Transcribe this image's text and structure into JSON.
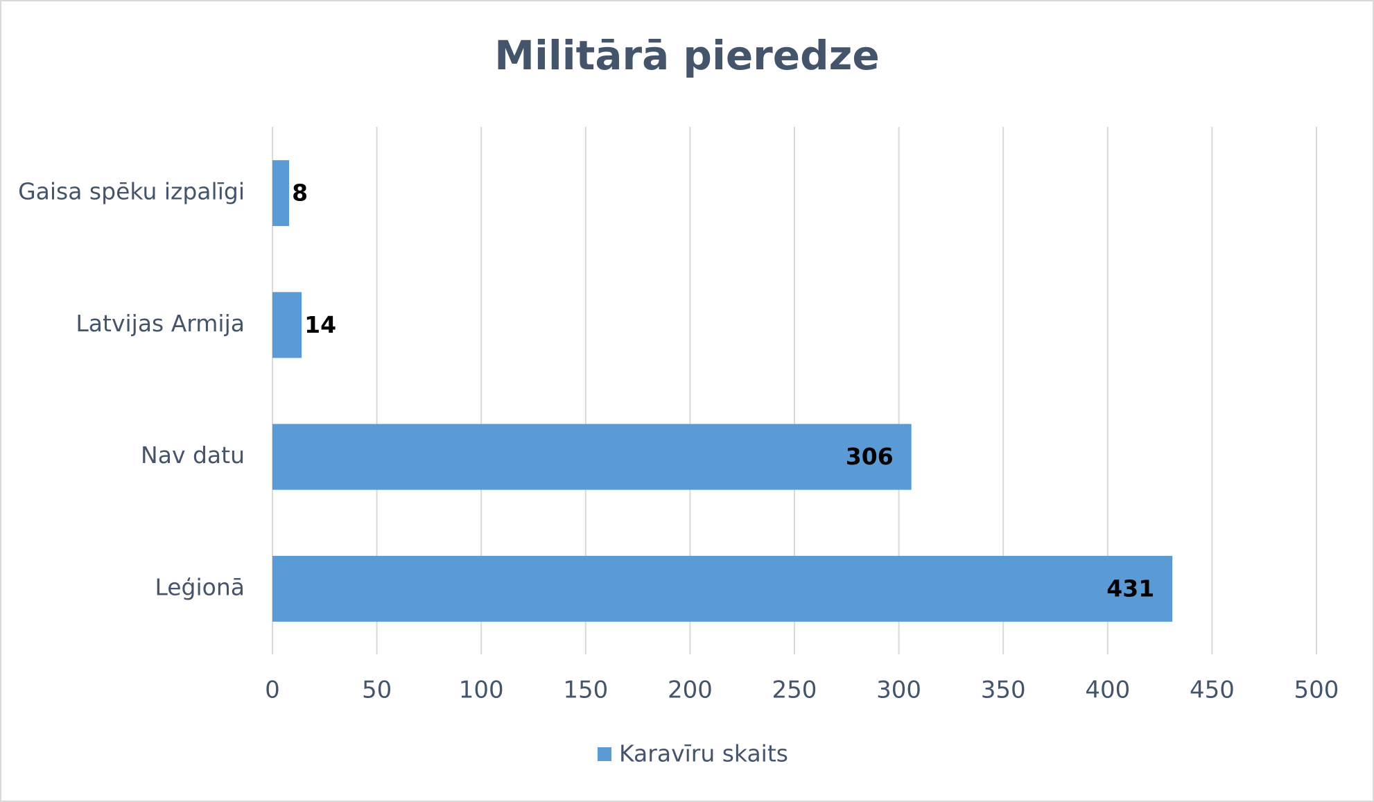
{
  "chart_data": {
    "type": "bar",
    "orientation": "horizontal",
    "title": "Militārā pieredze",
    "categories": [
      "Gaisa spēku izpalīgi",
      "Latvijas Armija",
      "Nav datu",
      "Leģionā"
    ],
    "series": [
      {
        "name": "Karavīru skaits",
        "color": "#5b9bd5",
        "values": [
          8,
          14,
          306,
          431
        ]
      }
    ],
    "xlim": [
      0,
      500
    ],
    "xticks": [
      0,
      50,
      100,
      150,
      200,
      250,
      300,
      350,
      400,
      450,
      500
    ],
    "grid": true,
    "legend": "bottom"
  }
}
